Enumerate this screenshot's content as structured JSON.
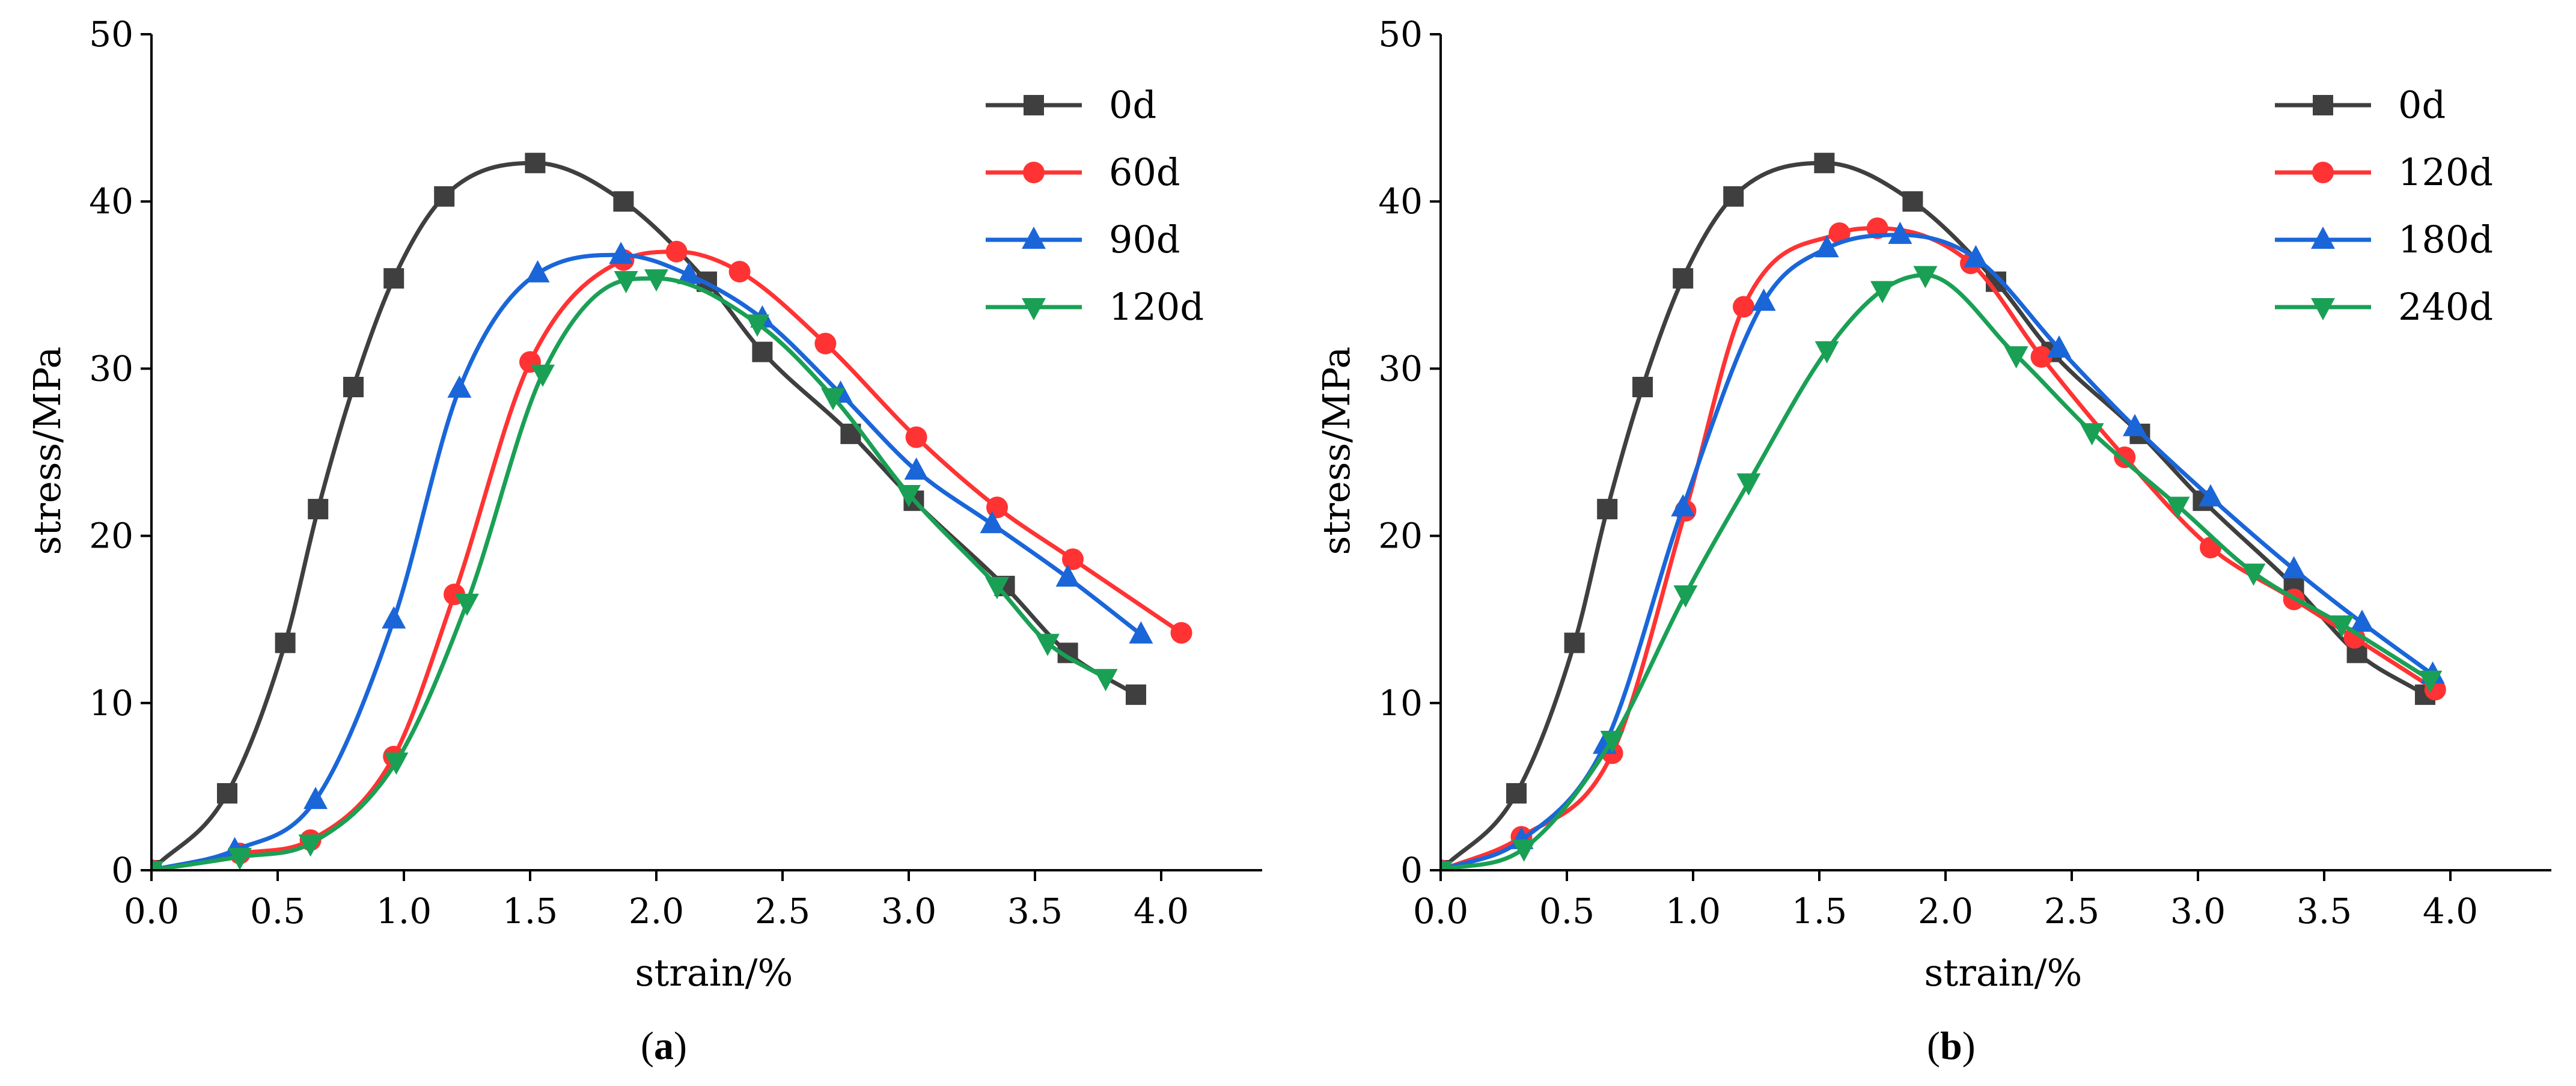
{
  "figure": {
    "panels": [
      {
        "id": "a",
        "label_text": "a",
        "label_open": "(",
        "label_close": ")"
      },
      {
        "id": "b",
        "label_text": "b",
        "label_open": "(",
        "label_close": ")"
      }
    ]
  },
  "chart_data": [
    {
      "type": "line",
      "panel": "a",
      "title": "",
      "xlabel": "strain/%",
      "ylabel": "stress/MPa",
      "xlim": [
        0,
        4.4
      ],
      "ylim": [
        0,
        50
      ],
      "xticks": [
        0.0,
        0.5,
        1.0,
        1.5,
        2.0,
        2.5,
        3.0,
        3.5,
        4.0
      ],
      "xtick_labels": [
        "0.0",
        "0.5",
        "1.0",
        "1.5",
        "2.0",
        "2.5",
        "3.0",
        "3.5",
        "4.0"
      ],
      "yticks": [
        0,
        10,
        20,
        30,
        40,
        50
      ],
      "ytick_labels": [
        "0",
        "10",
        "20",
        "30",
        "40",
        "50"
      ],
      "legend_position": "top-right",
      "series": [
        {
          "name": "0d",
          "color": "#3f3f3f",
          "marker": "square",
          "x": [
            0.0,
            0.3,
            0.53,
            0.66,
            0.8,
            0.96,
            1.16,
            1.52,
            1.87,
            2.2,
            2.42,
            2.77,
            3.02,
            3.38,
            3.63,
            3.9
          ],
          "y": [
            0.0,
            4.6,
            13.6,
            21.6,
            28.9,
            35.4,
            40.3,
            42.3,
            40.0,
            35.2,
            31.0,
            26.1,
            22.1,
            17.0,
            13.0,
            10.5
          ]
        },
        {
          "name": "60d",
          "color": "#ff3333",
          "marker": "circle",
          "x": [
            0.0,
            0.35,
            0.63,
            0.96,
            1.2,
            1.5,
            1.87,
            2.08,
            2.33,
            2.67,
            3.03,
            3.35,
            3.65,
            4.08
          ],
          "y": [
            0.0,
            1.0,
            1.8,
            6.8,
            16.5,
            30.4,
            36.5,
            37.0,
            35.8,
            31.5,
            25.9,
            21.7,
            18.6,
            14.2
          ]
        },
        {
          "name": "90d",
          "color": "#1a66d9",
          "marker": "triangle-up",
          "x": [
            0.0,
            0.33,
            0.65,
            0.96,
            1.22,
            1.53,
            1.86,
            2.13,
            2.42,
            2.73,
            3.03,
            3.33,
            3.63,
            3.92
          ],
          "y": [
            0.0,
            1.2,
            4.2,
            15.0,
            28.8,
            35.7,
            36.8,
            35.6,
            33.0,
            28.5,
            23.9,
            20.7,
            17.5,
            14.1
          ]
        },
        {
          "name": "120d",
          "color": "#1aa055",
          "marker": "triangle-down",
          "x": [
            0.0,
            0.35,
            0.63,
            0.97,
            1.25,
            1.55,
            1.88,
            2.0,
            2.4,
            2.7,
            3.0,
            3.35,
            3.55,
            3.78
          ],
          "y": [
            0.0,
            0.8,
            1.6,
            6.5,
            16.0,
            29.7,
            35.3,
            35.4,
            32.7,
            28.3,
            22.5,
            17.0,
            13.6,
            11.5
          ]
        }
      ]
    },
    {
      "type": "line",
      "panel": "b",
      "title": "",
      "xlabel": "strain/%",
      "ylabel": "stress/MPa",
      "xlim": [
        0,
        4.4
      ],
      "ylim": [
        0,
        50
      ],
      "xticks": [
        0.0,
        0.5,
        1.0,
        1.5,
        2.0,
        2.5,
        3.0,
        3.5,
        4.0
      ],
      "xtick_labels": [
        "0.0",
        "0.5",
        "1.0",
        "1.5",
        "2.0",
        "2.5",
        "3.0",
        "3.5",
        "4.0"
      ],
      "yticks": [
        0,
        10,
        20,
        30,
        40,
        50
      ],
      "ytick_labels": [
        "0",
        "10",
        "20",
        "30",
        "40",
        "50"
      ],
      "legend_position": "top-right",
      "series": [
        {
          "name": "0d",
          "color": "#3f3f3f",
          "marker": "square",
          "x": [
            0.0,
            0.3,
            0.53,
            0.66,
            0.8,
            0.96,
            1.16,
            1.52,
            1.87,
            2.2,
            2.42,
            2.77,
            3.02,
            3.38,
            3.63,
            3.9
          ],
          "y": [
            0.0,
            4.6,
            13.6,
            21.6,
            28.9,
            35.4,
            40.3,
            42.3,
            40.0,
            35.2,
            31.0,
            26.1,
            22.1,
            17.0,
            13.0,
            10.5
          ]
        },
        {
          "name": "120d",
          "color": "#ff3333",
          "marker": "circle",
          "x": [
            0.0,
            0.32,
            0.68,
            0.97,
            1.2,
            1.58,
            1.73,
            2.1,
            2.38,
            2.71,
            3.05,
            3.38,
            3.62,
            3.94
          ],
          "y": [
            0.0,
            2.0,
            7.0,
            21.5,
            33.7,
            38.1,
            38.4,
            36.3,
            30.7,
            24.7,
            19.3,
            16.2,
            13.9,
            10.8
          ]
        },
        {
          "name": "180d",
          "color": "#1a66d9",
          "marker": "triangle-up",
          "x": [
            0.0,
            0.32,
            0.65,
            0.96,
            1.28,
            1.53,
            1.82,
            2.12,
            2.45,
            2.75,
            3.05,
            3.38,
            3.65,
            3.93
          ],
          "y": [
            0.0,
            1.8,
            7.5,
            21.7,
            34.0,
            37.2,
            38.0,
            36.6,
            31.2,
            26.5,
            22.3,
            18.0,
            14.8,
            11.7
          ]
        },
        {
          "name": "240d",
          "color": "#1aa055",
          "marker": "triangle-down",
          "x": [
            0.0,
            0.33,
            0.68,
            0.97,
            1.22,
            1.53,
            1.75,
            1.92,
            2.28,
            2.58,
            2.92,
            3.22,
            3.57,
            3.92
          ],
          "y": [
            0.0,
            1.3,
            7.8,
            16.5,
            23.2,
            31.1,
            34.7,
            35.6,
            30.8,
            26.2,
            21.8,
            17.8,
            14.7,
            11.4
          ]
        }
      ]
    }
  ]
}
